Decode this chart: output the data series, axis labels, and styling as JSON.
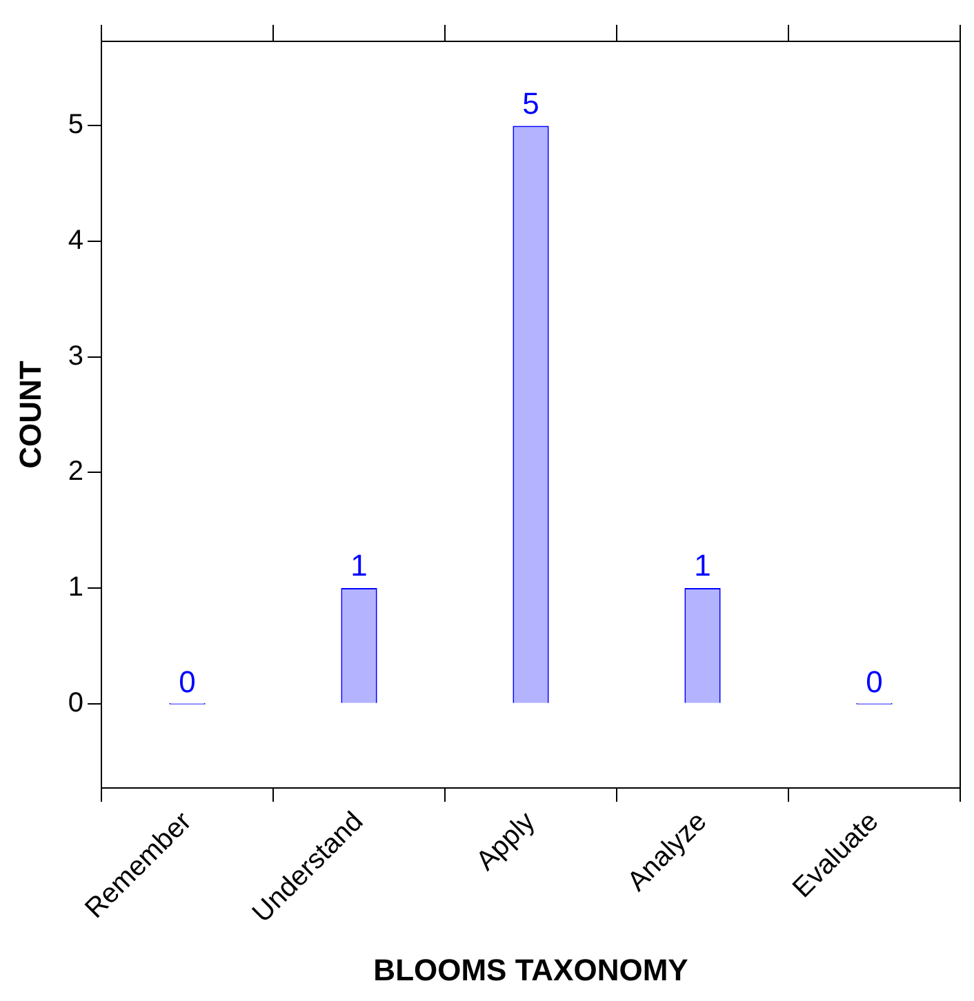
{
  "chart_data": {
    "type": "bar",
    "xlabel": "BLOOMS TAXONOMY",
    "ylabel": "COUNT",
    "categories": [
      "Remember",
      "Understand",
      "Apply",
      "Analyze",
      "Evaluate"
    ],
    "values": [
      0,
      1,
      5,
      1,
      0
    ],
    "color": "#b3b3ff",
    "ylim": [
      -0.73,
      5.73
    ],
    "yticks": [
      0,
      1,
      2,
      3,
      4,
      5
    ],
    "grid": false,
    "data_labels": true
  }
}
